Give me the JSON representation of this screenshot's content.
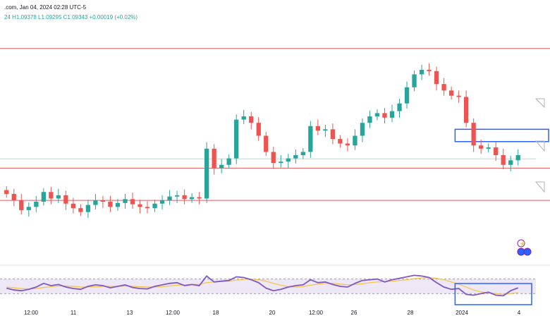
{
  "header": {
    "info_text": ".com, Jan 04, 2024 02:28 UTC-5",
    "ohlc_text": "24  H1.09378  L1.09295  C1.09343  +0.00019 (+0.02%)"
  },
  "colors": {
    "background": "#ffffff",
    "up_candle": "#26a69a",
    "down_candle": "#ef5350",
    "level_line": "#e05a5a",
    "zone_box": "#2962ff",
    "rsi_line": "#7e57c2",
    "rsi_ma": "#f5c343",
    "rsi_band": "#ede7f6",
    "axis_text": "#131722",
    "price_line": "#b2dfdb"
  },
  "chart_data": {
    "type": "candlestick",
    "title": "",
    "grid": false,
    "x_tick_labels": [
      "12:00",
      "11",
      "13",
      "12:00",
      "18",
      "20",
      "12:00",
      "26",
      "28",
      "2024",
      "4"
    ],
    "horizontal_levels": [
      1.1105,
      1.092,
      1.087
    ],
    "zone": {
      "upper": 1.098,
      "lower": 1.0961
    },
    "last_close": 1.09343,
    "series_close": [
      1.088,
      1.087,
      1.0855,
      1.086,
      1.0868,
      1.0883,
      1.0873,
      1.0878,
      1.0865,
      1.0858,
      1.0852,
      1.0863,
      1.087,
      1.0868,
      1.086,
      1.0866,
      1.0872,
      1.0864,
      1.086,
      1.0858,
      1.0865,
      1.087,
      1.0876,
      1.0878,
      1.0872,
      1.0875,
      1.0873,
      1.095,
      1.092,
      1.0925,
      1.0935,
      1.0995,
      1.1,
      1.099,
      1.097,
      1.0945,
      1.0928,
      1.093,
      1.0935,
      1.094,
      1.0945,
      1.0985,
      1.0978,
      1.098,
      1.0965,
      1.0958,
      1.0955,
      1.097,
      1.099,
      1.1,
      1.1005,
      1.0998,
      1.1008,
      1.102,
      1.1045,
      1.1065,
      1.1072,
      1.107,
      1.105,
      1.104,
      1.1032,
      1.103,
      1.099,
      1.0955,
      1.095,
      1.0952,
      1.094,
      1.0925,
      1.0932,
      1.094
    ],
    "rsi": {
      "ylim": [
        0,
        100
      ],
      "bands": [
        70,
        30
      ],
      "values": [
        45,
        40,
        38,
        42,
        48,
        58,
        52,
        55,
        48,
        44,
        42,
        50,
        54,
        52,
        46,
        50,
        54,
        47,
        44,
        43,
        50,
        54,
        58,
        60,
        52,
        55,
        52,
        78,
        62,
        64,
        66,
        76,
        74,
        68,
        60,
        45,
        38,
        42,
        48,
        52,
        54,
        68,
        60,
        62,
        55,
        50,
        48,
        58,
        66,
        68,
        70,
        62,
        68,
        72,
        76,
        80,
        78,
        74,
        60,
        48,
        42,
        44,
        28,
        26,
        30,
        34,
        26,
        24,
        38,
        46
      ],
      "ma": [
        48,
        46,
        44,
        43,
        44,
        47,
        49,
        51,
        51,
        50,
        48,
        48,
        49,
        50,
        50,
        50,
        51,
        50,
        49,
        48,
        48,
        49,
        51,
        53,
        54,
        55,
        55,
        60,
        62,
        63,
        64,
        67,
        69,
        70,
        68,
        64,
        58,
        53,
        49,
        48,
        49,
        53,
        56,
        58,
        58,
        56,
        54,
        55,
        57,
        60,
        62,
        63,
        64,
        66,
        68,
        71,
        73,
        74,
        72,
        68,
        62,
        56,
        48,
        40,
        35,
        32,
        30,
        28,
        30,
        33
      ]
    }
  }
}
